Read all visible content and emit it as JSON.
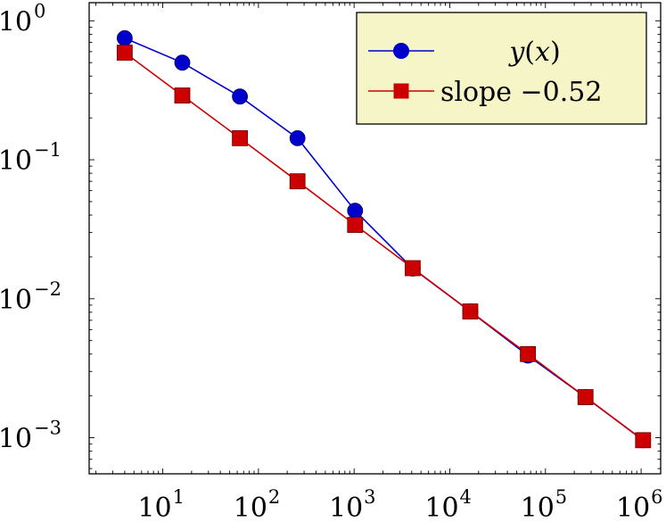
{
  "chart_data": {
    "type": "line",
    "x_scale": "log",
    "y_scale": "log",
    "xlim": [
      1.7,
      1600000
    ],
    "ylim": [
      0.00055,
      1.35
    ],
    "x_ticks": [
      {
        "value": 10,
        "base": "10",
        "exp": "1"
      },
      {
        "value": 100,
        "base": "10",
        "exp": "2"
      },
      {
        "value": 1000,
        "base": "10",
        "exp": "3"
      },
      {
        "value": 10000,
        "base": "10",
        "exp": "4"
      },
      {
        "value": 100000,
        "base": "10",
        "exp": "5"
      },
      {
        "value": 1000000,
        "base": "10",
        "exp": "6"
      }
    ],
    "y_ticks": [
      {
        "value": 1,
        "base": "10",
        "exp": "0"
      },
      {
        "value": 0.1,
        "base": "10",
        "exp": "−1"
      },
      {
        "value": 0.01,
        "base": "10",
        "exp": "−2"
      },
      {
        "value": 0.001,
        "base": "10",
        "exp": "−3"
      }
    ],
    "grid": false,
    "legend_position": "top-right",
    "series": [
      {
        "name_parts": [
          "y",
          "(",
          "x",
          ")"
        ],
        "name": "y(x)",
        "color": "#0000cc",
        "marker": "circle",
        "x": [
          4,
          16,
          64,
          256,
          1024,
          4096,
          16384,
          65536,
          262144,
          1048576
        ],
        "y": [
          0.75,
          0.5,
          0.285,
          0.143,
          0.043,
          0.0165,
          0.0081,
          0.0039,
          0.00196,
          0.00096
        ]
      },
      {
        "name": "slope −0.52",
        "color": "#cc0000",
        "marker": "square",
        "x": [
          4,
          16,
          64,
          256,
          1024,
          4096,
          16384,
          65536,
          262144,
          1048576
        ],
        "y": [
          0.59,
          0.29,
          0.143,
          0.07,
          0.034,
          0.0166,
          0.0081,
          0.004,
          0.00196,
          0.00096
        ]
      }
    ]
  }
}
